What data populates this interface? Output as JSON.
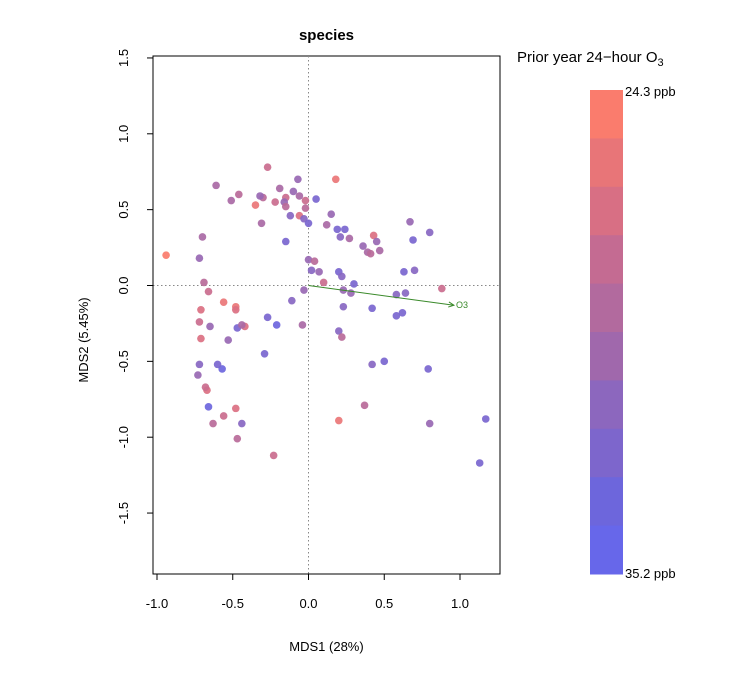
{
  "chart_data": {
    "type": "scatter",
    "title": "species",
    "xlabel": "MDS1 (28%)",
    "ylabel": "MDS2 (5.45%)",
    "xlim": [
      -1.0,
      1.2
    ],
    "ylim": [
      -1.9,
      1.55
    ],
    "xticks": [
      "-1.0",
      "-0.5",
      "0.0",
      "0.5",
      "1.0"
    ],
    "yticks": [
      "-1.5",
      "-1.0",
      "-0.5",
      "0.0",
      "0.5",
      "1.0",
      "1.5"
    ],
    "reference_lines": {
      "x": 0,
      "y": 0,
      "style": "dotted"
    },
    "grid": false,
    "legend": {
      "title": "Prior year 24−hour O",
      "title_subscript": "3",
      "placement": "right",
      "max_label": "24.3 ppb",
      "min_label": "35.2 ppb",
      "max_value": 24.3,
      "min_value": 35.2,
      "colors": [
        "#fa7c6d",
        "#e87578",
        "#d86f84",
        "#c46b92",
        "#b26a9e",
        "#a068ac",
        "#8c67be",
        "#7d66cc",
        "#6d66dc",
        "#6767ea"
      ]
    },
    "vector": {
      "label": "O3",
      "x": 0.96,
      "y": -0.13,
      "color": "#3a8a2a"
    },
    "points": [
      {
        "x": -0.94,
        "y": 0.2,
        "c": 0.0
      },
      {
        "x": -0.72,
        "y": 0.18,
        "c": 0.6
      },
      {
        "x": -0.7,
        "y": 0.32,
        "c": 0.5
      },
      {
        "x": -0.69,
        "y": 0.02,
        "c": 0.4
      },
      {
        "x": -0.66,
        "y": -0.04,
        "c": 0.3
      },
      {
        "x": -0.71,
        "y": -0.16,
        "c": 0.2
      },
      {
        "x": -0.72,
        "y": -0.24,
        "c": 0.3
      },
      {
        "x": -0.65,
        "y": -0.27,
        "c": 0.6
      },
      {
        "x": -0.71,
        "y": -0.35,
        "c": 0.2
      },
      {
        "x": -0.72,
        "y": -0.52,
        "c": 0.7
      },
      {
        "x": -0.73,
        "y": -0.59,
        "c": 0.6
      },
      {
        "x": -0.67,
        "y": -0.69,
        "c": 0.2
      },
      {
        "x": -0.63,
        "y": -0.91,
        "c": 0.4
      },
      {
        "x": -0.61,
        "y": 0.66,
        "c": 0.5
      },
      {
        "x": -0.56,
        "y": -0.11,
        "c": 0.1
      },
      {
        "x": -0.57,
        "y": -0.55,
        "c": 0.9
      },
      {
        "x": -0.53,
        "y": -0.36,
        "c": 0.6
      },
      {
        "x": -0.56,
        "y": -0.86,
        "c": 0.3
      },
      {
        "x": -0.51,
        "y": 0.56,
        "c": 0.5
      },
      {
        "x": -0.48,
        "y": -0.14,
        "c": 0.1
      },
      {
        "x": -0.48,
        "y": -0.16,
        "c": 0.2
      },
      {
        "x": -0.47,
        "y": -0.28,
        "c": 0.8
      },
      {
        "x": -0.48,
        "y": -0.81,
        "c": 0.2
      },
      {
        "x": -0.47,
        "y": -1.01,
        "c": 0.4
      },
      {
        "x": -0.46,
        "y": 0.6,
        "c": 0.4
      },
      {
        "x": -0.44,
        "y": -0.91,
        "c": 0.7
      },
      {
        "x": -0.42,
        "y": -0.27,
        "c": 0.2
      },
      {
        "x": -0.35,
        "y": 0.53,
        "c": 0.1
      },
      {
        "x": -0.31,
        "y": 0.41,
        "c": 0.5
      },
      {
        "x": -0.3,
        "y": 0.58,
        "c": 0.4
      },
      {
        "x": -0.27,
        "y": 0.78,
        "c": 0.3
      },
      {
        "x": -0.27,
        "y": -0.21,
        "c": 0.8
      },
      {
        "x": -0.29,
        "y": -0.45,
        "c": 0.8
      },
      {
        "x": -0.23,
        "y": -1.12,
        "c": 0.3
      },
      {
        "x": -0.22,
        "y": 0.55,
        "c": 0.3
      },
      {
        "x": -0.19,
        "y": 0.64,
        "c": 0.5
      },
      {
        "x": -0.15,
        "y": 0.58,
        "c": 0.3
      },
      {
        "x": -0.16,
        "y": 0.55,
        "c": 0.6
      },
      {
        "x": -0.15,
        "y": 0.52,
        "c": 0.4
      },
      {
        "x": -0.15,
        "y": 0.29,
        "c": 0.8
      },
      {
        "x": -0.12,
        "y": 0.46,
        "c": 0.7
      },
      {
        "x": -0.1,
        "y": 0.62,
        "c": 0.6
      },
      {
        "x": -0.11,
        "y": -0.1,
        "c": 0.7
      },
      {
        "x": -0.07,
        "y": 0.7,
        "c": 0.6
      },
      {
        "x": -0.06,
        "y": 0.46,
        "c": 0.2
      },
      {
        "x": -0.06,
        "y": 0.59,
        "c": 0.5
      },
      {
        "x": -0.03,
        "y": 0.44,
        "c": 0.7
      },
      {
        "x": -0.02,
        "y": 0.56,
        "c": 0.3
      },
      {
        "x": -0.03,
        "y": -0.03,
        "c": 0.6
      },
      {
        "x": -0.04,
        "y": -0.26,
        "c": 0.5
      },
      {
        "x": 0.0,
        "y": 0.41,
        "c": 0.8
      },
      {
        "x": -0.02,
        "y": 0.51,
        "c": 0.4
      },
      {
        "x": 0.0,
        "y": 0.17,
        "c": 0.6
      },
      {
        "x": 0.02,
        "y": 0.1,
        "c": 0.7
      },
      {
        "x": 0.04,
        "y": 0.16,
        "c": 0.4
      },
      {
        "x": 0.05,
        "y": 0.57,
        "c": 0.8
      },
      {
        "x": 0.07,
        "y": 0.09,
        "c": 0.6
      },
      {
        "x": 0.1,
        "y": 0.02,
        "c": 0.3
      },
      {
        "x": 0.12,
        "y": 0.4,
        "c": 0.5
      },
      {
        "x": 0.15,
        "y": 0.47,
        "c": 0.6
      },
      {
        "x": 0.18,
        "y": 0.7,
        "c": 0.1
      },
      {
        "x": 0.19,
        "y": 0.37,
        "c": 0.8
      },
      {
        "x": 0.2,
        "y": 0.09,
        "c": 0.8
      },
      {
        "x": 0.21,
        "y": 0.32,
        "c": 0.7
      },
      {
        "x": 0.22,
        "y": 0.06,
        "c": 0.7
      },
      {
        "x": 0.23,
        "y": -0.03,
        "c": 0.6
      },
      {
        "x": 0.24,
        "y": 0.37,
        "c": 0.8
      },
      {
        "x": 0.23,
        "y": -0.14,
        "c": 0.7
      },
      {
        "x": 0.27,
        "y": 0.31,
        "c": 0.5
      },
      {
        "x": 0.28,
        "y": -0.05,
        "c": 0.6
      },
      {
        "x": 0.2,
        "y": -0.3,
        "c": 0.7
      },
      {
        "x": 0.22,
        "y": -0.34,
        "c": 0.4
      },
      {
        "x": 0.2,
        "y": -0.89,
        "c": 0.1
      },
      {
        "x": 0.3,
        "y": 0.01,
        "c": 0.8
      },
      {
        "x": 0.36,
        "y": 0.26,
        "c": 0.6
      },
      {
        "x": 0.39,
        "y": 0.22,
        "c": 0.5
      },
      {
        "x": 0.41,
        "y": 0.21,
        "c": 0.4
      },
      {
        "x": 0.43,
        "y": 0.33,
        "c": 0.2
      },
      {
        "x": 0.45,
        "y": 0.29,
        "c": 0.6
      },
      {
        "x": 0.47,
        "y": 0.23,
        "c": 0.5
      },
      {
        "x": 0.42,
        "y": -0.15,
        "c": 0.8
      },
      {
        "x": 0.42,
        "y": -0.52,
        "c": 0.7
      },
      {
        "x": 0.5,
        "y": -0.5,
        "c": 0.8
      },
      {
        "x": 0.37,
        "y": -0.79,
        "c": 0.4
      },
      {
        "x": 0.58,
        "y": -0.06,
        "c": 0.7
      },
      {
        "x": 0.58,
        "y": -0.2,
        "c": 0.8
      },
      {
        "x": 0.62,
        "y": -0.18,
        "c": 0.8
      },
      {
        "x": 0.63,
        "y": 0.09,
        "c": 0.8
      },
      {
        "x": 0.64,
        "y": -0.05,
        "c": 0.7
      },
      {
        "x": 0.67,
        "y": 0.42,
        "c": 0.6
      },
      {
        "x": 0.69,
        "y": 0.3,
        "c": 0.8
      },
      {
        "x": 0.7,
        "y": 0.1,
        "c": 0.7
      },
      {
        "x": 0.8,
        "y": 0.35,
        "c": 0.7
      },
      {
        "x": 0.79,
        "y": -0.55,
        "c": 0.8
      },
      {
        "x": 0.8,
        "y": -0.91,
        "c": 0.6
      },
      {
        "x": 0.88,
        "y": -0.02,
        "c": 0.3
      },
      {
        "x": 1.13,
        "y": -1.17,
        "c": 0.8
      },
      {
        "x": 1.17,
        "y": -0.88,
        "c": 0.8
      },
      {
        "x": -0.68,
        "y": -0.67,
        "c": 0.3
      },
      {
        "x": -0.66,
        "y": -0.8,
        "c": 0.9
      },
      {
        "x": -0.6,
        "y": -0.52,
        "c": 0.8
      },
      {
        "x": -0.44,
        "y": -0.26,
        "c": 0.5
      },
      {
        "x": -0.21,
        "y": -0.26,
        "c": 0.9
      },
      {
        "x": -0.32,
        "y": 0.59,
        "c": 0.6
      }
    ]
  }
}
